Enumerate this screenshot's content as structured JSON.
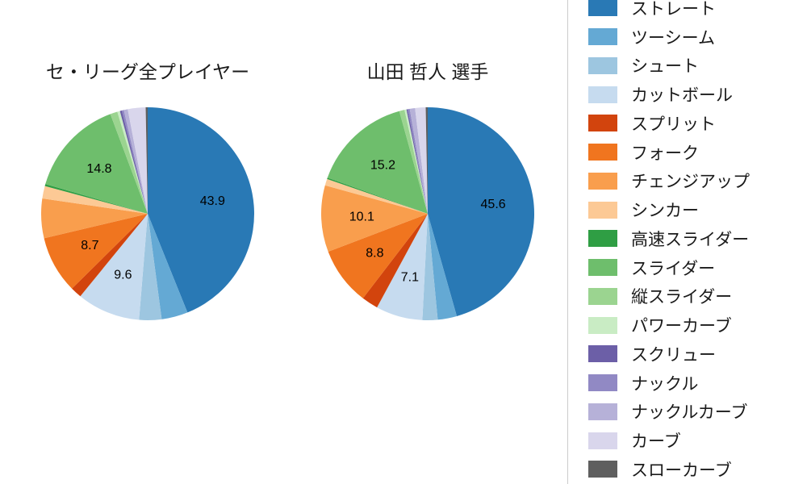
{
  "titles": {
    "left": "セ・リーグ全プレイヤー",
    "right": "山田 哲人 選手"
  },
  "legend": {
    "position": "right-outside",
    "items": [
      {
        "label": "ストレート",
        "color": "#2979b5"
      },
      {
        "label": "ツーシーム",
        "color": "#64a9d4"
      },
      {
        "label": "シュート",
        "color": "#9dc6e0"
      },
      {
        "label": "カットボール",
        "color": "#c6dbef"
      },
      {
        "label": "スプリット",
        "color": "#d2440d"
      },
      {
        "label": "フォーク",
        "color": "#f0751f"
      },
      {
        "label": "チェンジアップ",
        "color": "#f99e4d"
      },
      {
        "label": "シンカー",
        "color": "#fcc995"
      },
      {
        "label": "高速スライダー",
        "color": "#2f9e44"
      },
      {
        "label": "スライダー",
        "color": "#6ebe6c"
      },
      {
        "label": "縦スライダー",
        "color": "#9bd490"
      },
      {
        "label": "パワーカーブ",
        "color": "#c9ecc4"
      },
      {
        "label": "スクリュー",
        "color": "#6c5fa7"
      },
      {
        "label": "ナックル",
        "color": "#9189c4"
      },
      {
        "label": "ナックルカーブ",
        "color": "#b6b1d8"
      },
      {
        "label": "カーブ",
        "color": "#d9d6ec"
      },
      {
        "label": "スローカーブ",
        "color": "#5f5f5f"
      }
    ]
  },
  "chart_data": [
    {
      "type": "pie",
      "title": "セ・リーグ全プレイヤー",
      "start_angle_deg": 90,
      "direction": "clockwise",
      "label_distance": 0.62,
      "categories": [
        "ストレート",
        "ツーシーム",
        "シュート",
        "カットボール",
        "スプリット",
        "フォーク",
        "チェンジアップ",
        "シンカー",
        "高速スライダー",
        "スライダー",
        "縦スライダー",
        "パワーカーブ",
        "スクリュー",
        "ナックル",
        "ナックルカーブ",
        "カーブ",
        "スローカーブ"
      ],
      "values": [
        43.9,
        4.0,
        3.4,
        9.6,
        1.7,
        8.7,
        6.0,
        1.9,
        0.3,
        14.8,
        1.1,
        0.4,
        0.3,
        0.3,
        0.6,
        2.7,
        0.3
      ],
      "shown_labels": [
        "43.9",
        "",
        "",
        "9.6",
        "",
        "8.7",
        "",
        "",
        "",
        "14.8",
        "",
        "",
        "",
        "",
        "",
        "",
        ""
      ]
    },
    {
      "type": "pie",
      "title": "山田 哲人 選手",
      "start_angle_deg": 90,
      "direction": "clockwise",
      "label_distance": 0.62,
      "categories": [
        "ストレート",
        "ツーシーム",
        "シュート",
        "カットボール",
        "スプリット",
        "フォーク",
        "チェンジアップ",
        "シンカー",
        "高速スライダー",
        "スライダー",
        "縦スライダー",
        "パワーカーブ",
        "スクリュー",
        "ナックル",
        "ナックルカーブ",
        "カーブ",
        "スローカーブ"
      ],
      "values": [
        45.6,
        2.9,
        2.3,
        7.1,
        2.5,
        8.8,
        10.1,
        1.0,
        0.2,
        15.2,
        0.8,
        0.3,
        0.2,
        0.3,
        0.8,
        1.6,
        0.3
      ],
      "shown_labels": [
        "45.6",
        "",
        "",
        "7.1",
        "",
        "8.8",
        "10.1",
        "",
        "",
        "15.2",
        "",
        "",
        "",
        "",
        "",
        "",
        ""
      ]
    }
  ]
}
